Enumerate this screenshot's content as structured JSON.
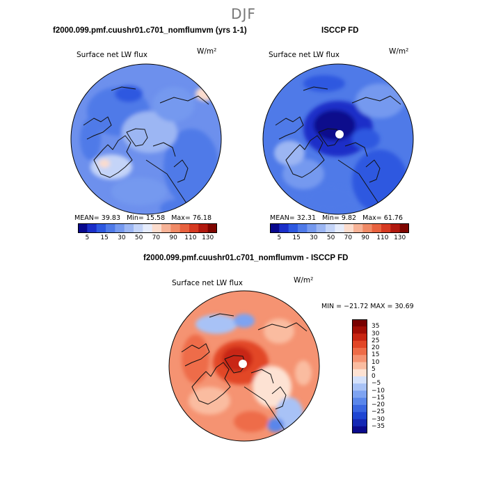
{
  "season": "DJF",
  "colors": {
    "map_levels": [
      "#08088c",
      "#1a2ec8",
      "#2d58e0",
      "#4f7ae8",
      "#7599ef",
      "#9cb6f3",
      "#c4d4f8",
      "#e6ecfb",
      "#fbdccd",
      "#f7b397",
      "#f08a66",
      "#e8623f",
      "#d63a22",
      "#b1190f",
      "#7e0500"
    ],
    "diff_levels": [
      "#0a0a8c",
      "#1428b4",
      "#1f46d2",
      "#3a66e0",
      "#5a86ea",
      "#7ea3f1",
      "#a8c2f6",
      "#d4e1fb",
      "#fde2d3",
      "#fabca0",
      "#f59372",
      "#ee6c48",
      "#e24727",
      "#c82512",
      "#a10d05",
      "#780000"
    ]
  },
  "panels": [
    {
      "header": "f2000.099.pmf.cuushr01.c701_nomflumvm (yrs 1-1)",
      "var_label": "Surface net LW flux",
      "units": "W/m²",
      "stats": {
        "mean_label": "MEAN=",
        "mean": "39.83",
        "min_label": "Min=",
        "min": "15.58",
        "max_label": "Max=",
        "max": "76.18"
      },
      "colorbar_ticks": [
        "5",
        "15",
        "30",
        "50",
        "70",
        "90",
        "110",
        "130"
      ]
    },
    {
      "header": "ISCCP FD",
      "var_label": "Surface net LW flux",
      "units": "W/m²",
      "stats": {
        "mean_label": "MEAN=",
        "mean": "32.31",
        "min_label": "Min=",
        "min": "9.82",
        "max_label": "Max=",
        "max": "61.76"
      },
      "colorbar_ticks": [
        "5",
        "15",
        "30",
        "50",
        "70",
        "90",
        "110",
        "130"
      ]
    },
    {
      "header": "f2000.099.pmf.cuushr01.c701_nomflumvm - ISCCP FD",
      "var_label": "Surface net LW flux",
      "units": "W/m²",
      "stats_line": "MIN = −21.72 MAX =  30.69",
      "colorbar_ticks": [
        "35",
        "30",
        "25",
        "20",
        "15",
        "10",
        "5",
        "0",
        "−5",
        "−10",
        "−15",
        "−20",
        "−25",
        "−30",
        "−35"
      ]
    }
  ],
  "chart_data": [
    {
      "type": "heatmap",
      "projection": "north-polar-stereographic",
      "title": "f2000.099.pmf.cuushr01.c701_nomflumvm (yrs 1-1)",
      "variable": "Surface net LW flux",
      "units": "W/m²",
      "mean": 39.83,
      "min": 15.58,
      "max": 76.18,
      "levels": [
        5,
        10,
        15,
        20,
        25,
        30,
        40,
        50,
        60,
        70,
        80,
        90,
        100,
        110,
        120,
        130
      ]
    },
    {
      "type": "heatmap",
      "projection": "north-polar-stereographic",
      "title": "ISCCP FD",
      "variable": "Surface net LW flux",
      "units": "W/m²",
      "mean": 32.31,
      "min": 9.82,
      "max": 61.76,
      "levels": [
        5,
        10,
        15,
        20,
        25,
        30,
        40,
        50,
        60,
        70,
        80,
        90,
        100,
        110,
        120,
        130
      ]
    },
    {
      "type": "heatmap",
      "projection": "north-polar-stereographic",
      "title": "f2000.099.pmf.cuushr01.c701_nomflumvm - ISCCP FD",
      "variable": "Surface net LW flux",
      "units": "W/m²",
      "min": -21.72,
      "max": 30.69,
      "levels": [
        -35,
        -30,
        -25,
        -20,
        -15,
        -10,
        -5,
        0,
        5,
        10,
        15,
        20,
        25,
        30,
        35
      ]
    }
  ]
}
